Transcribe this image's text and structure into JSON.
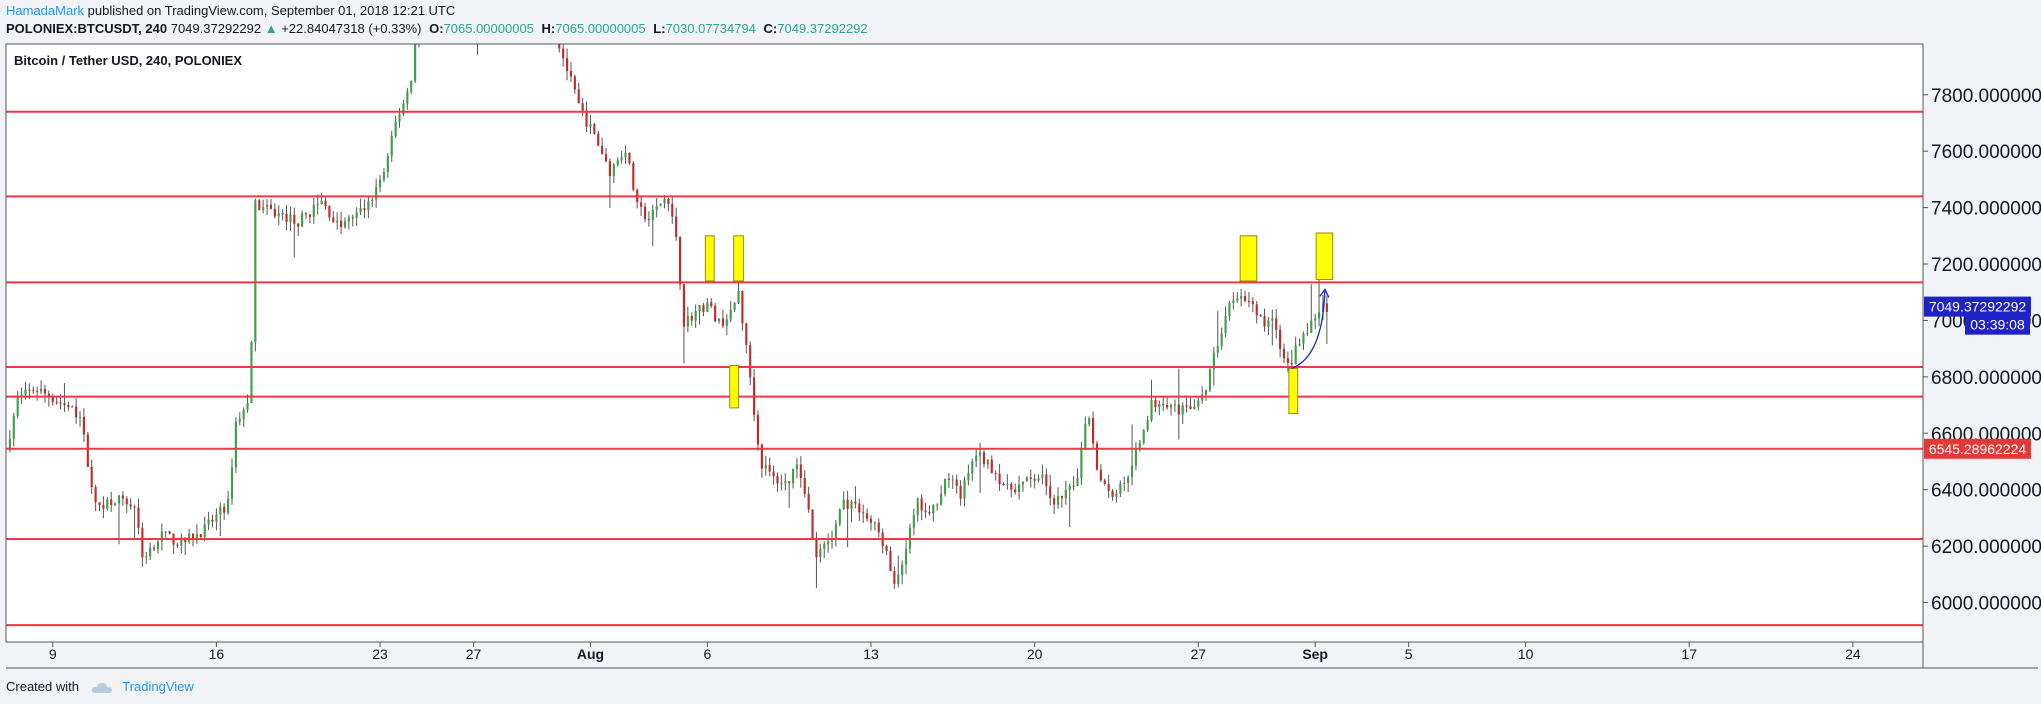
{
  "header": {
    "author": "HamadaMark",
    "published_text": "published on TradingView.com, September 01, 2018 12:21 UTC",
    "symbol": "POLONIEX:BTCUSDT, 240",
    "last": "7049.37292292",
    "change_arrow": "▲",
    "change": "+22.84047318 (+0.33%)",
    "open_label": "O:",
    "open": "7065.00000005",
    "high_label": "H:",
    "high": "7065.00000005",
    "low_label": "L:",
    "low": "7030.07734794",
    "close_label": "C:",
    "close": "7049.37292292"
  },
  "footer": {
    "created_with": "Created with",
    "brand": "TradingView",
    "logo_icon": "cloud-logo-icon"
  },
  "colors": {
    "up": "#26a69a",
    "candle_up": "#3d9f47",
    "candle_down": "#c62828",
    "level": "#f23645",
    "box": "#ffff00",
    "arrow": "#1e22c7",
    "accent": "#2196f3"
  },
  "chart_data": {
    "type": "candlestick",
    "title": "Bitcoin / Tether USD, 240, POLONIEX",
    "y_range": [
      5860,
      7980
    ],
    "x_range": [
      "2018-07-07",
      "2018-09-27"
    ],
    "y_ticks": [
      6000,
      6200,
      6400,
      6600,
      6800,
      7000,
      7200,
      7400,
      7600,
      7800
    ],
    "y_tick_labels": [
      "6000.000000",
      "6200.000000",
      "6400.000000",
      "6600.000000",
      "6800.000000",
      "7000.000000",
      "7200.000000",
      "7400.000000",
      "7600.000000",
      "7800.000000"
    ],
    "x_ticks": [
      {
        "label": "9",
        "date": "2018-07-09",
        "bold": false
      },
      {
        "label": "16",
        "date": "2018-07-16",
        "bold": false
      },
      {
        "label": "23",
        "date": "2018-07-23",
        "bold": false
      },
      {
        "label": "27",
        "date": "2018-07-27",
        "bold": false
      },
      {
        "label": "Aug",
        "date": "2018-08-01",
        "bold": true
      },
      {
        "label": "6",
        "date": "2018-08-06",
        "bold": false
      },
      {
        "label": "13",
        "date": "2018-08-13",
        "bold": false
      },
      {
        "label": "20",
        "date": "2018-08-20",
        "bold": false
      },
      {
        "label": "27",
        "date": "2018-08-27",
        "bold": false
      },
      {
        "label": "Sep",
        "date": "2018-09-01",
        "bold": true
      },
      {
        "label": "5",
        "date": "2018-09-05",
        "bold": false
      },
      {
        "label": "10",
        "date": "2018-09-10",
        "bold": false
      },
      {
        "label": "17",
        "date": "2018-09-17",
        "bold": false
      },
      {
        "label": "24",
        "date": "2018-09-24",
        "bold": false
      }
    ],
    "horizontal_levels": [
      7740,
      7440,
      7135,
      6835,
      6730,
      6545,
      6225,
      5920
    ],
    "price_labels": [
      {
        "value": "7049.37292292",
        "price": 7049,
        "color": "#1e22c7"
      },
      {
        "value": "03:39:08",
        "price": 6985,
        "color": "#1e22c7"
      },
      {
        "value": "6545.28962224",
        "price": 6545,
        "color": "#e53935"
      }
    ],
    "highlight_boxes": [
      {
        "date0": "2018-08-05T22:00",
        "date1": "2018-08-06T07:00",
        "top": 7300,
        "bottom": 7140
      },
      {
        "date0": "2018-08-07T03:00",
        "date1": "2018-08-07T13:00",
        "top": 7300,
        "bottom": 7140
      },
      {
        "date0": "2018-08-06T23:00",
        "date1": "2018-08-07T08:00",
        "top": 6840,
        "bottom": 6690
      },
      {
        "date0": "2018-08-28T19:00",
        "date1": "2018-08-29T12:00",
        "top": 7300,
        "bottom": 7140
      },
      {
        "date0": "2018-08-30T21:00",
        "date1": "2018-08-31T06:00",
        "top": 6830,
        "bottom": 6670
      },
      {
        "date0": "2018-09-01T01:00",
        "date1": "2018-09-01T18:00",
        "top": 7310,
        "bottom": 7145
      }
    ],
    "arrow": {
      "from_date": "2018-08-31T00:00",
      "from_price": 6830,
      "to_date": "2018-09-01T10:00",
      "to_price": 7110
    },
    "price_path": [
      [
        "2018-07-07T00:00",
        6540
      ],
      [
        "2018-07-07T12:00",
        6720
      ],
      [
        "2018-07-08T06:00",
        6760
      ],
      [
        "2018-07-09T12:00",
        6700
      ],
      [
        "2018-07-10T04:00",
        6660
      ],
      [
        "2018-07-10T20:00",
        6340
      ],
      [
        "2018-07-11T16:00",
        6370
      ],
      [
        "2018-07-12T12:00",
        6340
      ],
      [
        "2018-07-12T20:00",
        6160
      ],
      [
        "2018-07-13T16:00",
        6240
      ],
      [
        "2018-07-14T12:00",
        6210
      ],
      [
        "2018-07-15T12:00",
        6260
      ],
      [
        "2018-07-16T12:00",
        6350
      ],
      [
        "2018-07-16T20:00",
        6640
      ],
      [
        "2018-07-17T10:00",
        6710
      ],
      [
        "2018-07-17T16:00",
        7410
      ],
      [
        "2018-07-18T12:00",
        7380
      ],
      [
        "2018-07-19T12:00",
        7350
      ],
      [
        "2018-07-20T12:00",
        7420
      ],
      [
        "2018-07-21T06:00",
        7330
      ],
      [
        "2018-07-21T18:00",
        7360
      ],
      [
        "2018-07-22T12:00",
        7410
      ],
      [
        "2018-07-23T06:00",
        7540
      ],
      [
        "2018-07-23T16:00",
        7700
      ],
      [
        "2018-07-24T08:00",
        7850
      ],
      [
        "2018-07-24T16:00",
        8150
      ],
      [
        "2018-07-25T20:00",
        8250
      ],
      [
        "2018-07-27T00:00",
        8050
      ],
      [
        "2018-07-28T00:00",
        8200
      ],
      [
        "2018-07-30T00:00",
        8150
      ],
      [
        "2018-07-31T00:00",
        7890
      ],
      [
        "2018-07-31T12:00",
        7760
      ],
      [
        "2018-08-01T06:00",
        7640
      ],
      [
        "2018-08-01T20:00",
        7530
      ],
      [
        "2018-08-02T12:00",
        7610
      ],
      [
        "2018-08-03T00:00",
        7400
      ],
      [
        "2018-08-03T12:00",
        7360
      ],
      [
        "2018-08-04T06:00",
        7440
      ],
      [
        "2018-08-04T16:00",
        7300
      ],
      [
        "2018-08-05T00:00",
        6990
      ],
      [
        "2018-08-05T12:00",
        7030
      ],
      [
        "2018-08-06T00:00",
        7060
      ],
      [
        "2018-08-06T12:00",
        6990
      ],
      [
        "2018-08-07T00:00",
        7020
      ],
      [
        "2018-08-07T08:00",
        7100
      ],
      [
        "2018-08-07T20:00",
        6800
      ],
      [
        "2018-08-08T06:00",
        6500
      ],
      [
        "2018-08-08T20:00",
        6440
      ],
      [
        "2018-08-09T10:00",
        6420
      ],
      [
        "2018-08-09T20:00",
        6500
      ],
      [
        "2018-08-10T06:00",
        6380
      ],
      [
        "2018-08-10T14:00",
        6160
      ],
      [
        "2018-08-11T08:00",
        6220
      ],
      [
        "2018-08-11T18:00",
        6360
      ],
      [
        "2018-08-12T12:00",
        6330
      ],
      [
        "2018-08-13T06:00",
        6260
      ],
      [
        "2018-08-13T14:00",
        6200
      ],
      [
        "2018-08-14T00:00",
        6050
      ],
      [
        "2018-08-14T12:00",
        6200
      ],
      [
        "2018-08-15T00:00",
        6350
      ],
      [
        "2018-08-15T12:00",
        6300
      ],
      [
        "2018-08-16T06:00",
        6450
      ],
      [
        "2018-08-16T20:00",
        6380
      ],
      [
        "2018-08-17T12:00",
        6530
      ],
      [
        "2018-08-18T06:00",
        6470
      ],
      [
        "2018-08-18T20:00",
        6400
      ],
      [
        "2018-08-19T12:00",
        6420
      ],
      [
        "2018-08-20T06:00",
        6450
      ],
      [
        "2018-08-20T20:00",
        6350
      ],
      [
        "2018-08-21T10:00",
        6390
      ],
      [
        "2018-08-21T20:00",
        6450
      ],
      [
        "2018-08-22T06:00",
        6700
      ],
      [
        "2018-08-22T16:00",
        6480
      ],
      [
        "2018-08-23T06:00",
        6380
      ],
      [
        "2018-08-23T20:00",
        6420
      ],
      [
        "2018-08-24T10:00",
        6560
      ],
      [
        "2018-08-25T00:00",
        6700
      ],
      [
        "2018-08-25T12:00",
        6720
      ],
      [
        "2018-08-26T06:00",
        6680
      ],
      [
        "2018-08-26T18:00",
        6700
      ],
      [
        "2018-08-27T06:00",
        6730
      ],
      [
        "2018-08-27T18:00",
        6900
      ],
      [
        "2018-08-28T08:00",
        7050
      ],
      [
        "2018-08-28T20:00",
        7100
      ],
      [
        "2018-08-29T10:00",
        7030
      ],
      [
        "2018-08-29T20:00",
        6980
      ],
      [
        "2018-08-30T06:00",
        7010
      ],
      [
        "2018-08-30T16:00",
        6850
      ],
      [
        "2018-08-30T22:00",
        6840
      ],
      [
        "2018-08-31T06:00",
        6930
      ],
      [
        "2018-08-31T14:00",
        6960
      ],
      [
        "2018-08-31T22:00",
        7000
      ],
      [
        "2018-09-01T08:00",
        7055
      ],
      [
        "2018-09-01T12:00",
        7049
      ]
    ]
  }
}
